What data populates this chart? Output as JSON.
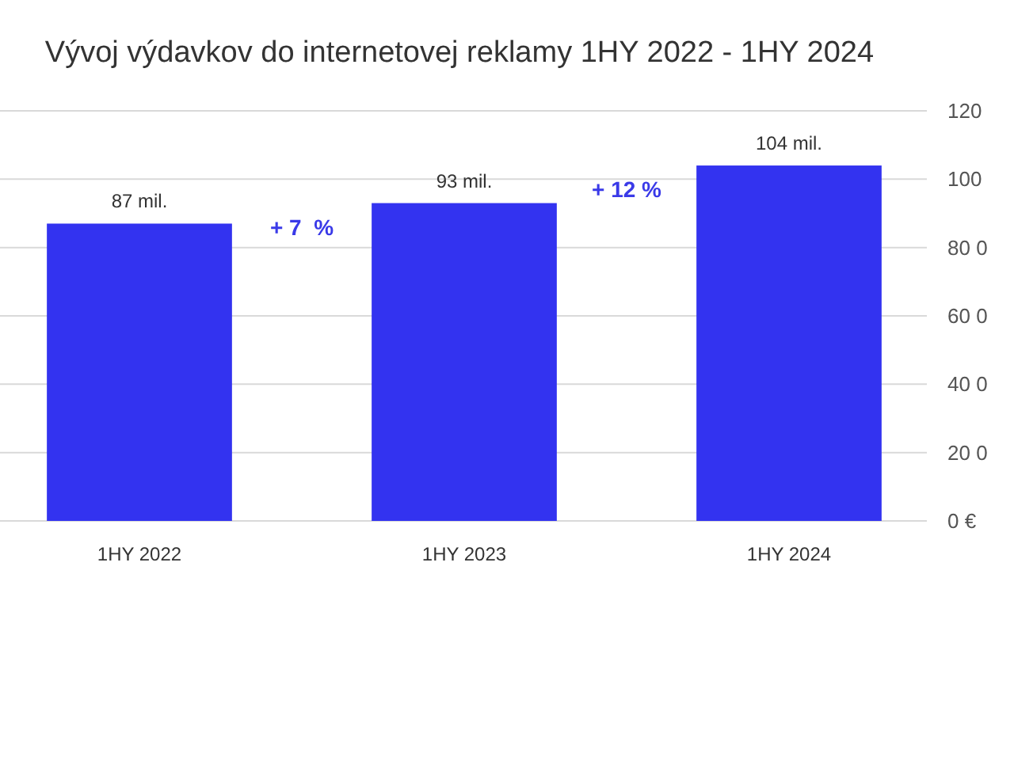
{
  "chart_data": {
    "type": "bar",
    "title": "Vývoj výdavkov do internetovej reklamy 1HY 2022 - 1HY 2024",
    "categories": [
      "1HY 2022",
      "1HY 2023",
      "1HY 2024"
    ],
    "values": [
      87,
      93,
      104
    ],
    "color": "#3333f0",
    "value_labels": [
      "87 mil.",
      "93 mil.",
      "104 mil."
    ],
    "ylim": [
      0,
      120
    ],
    "yticks": [
      {
        "value": 0,
        "label": "0 €"
      },
      {
        "value": 20,
        "label": "20 0"
      },
      {
        "value": 40,
        "label": "40 0"
      },
      {
        "value": 60,
        "label": "60 0"
      },
      {
        "value": 80,
        "label": "80 0"
      },
      {
        "value": 100,
        "label": "100"
      },
      {
        "value": 120,
        "label": "120"
      }
    ],
    "grid": true,
    "annotations": [
      "+ 7  %",
      "+ 12 %"
    ]
  }
}
